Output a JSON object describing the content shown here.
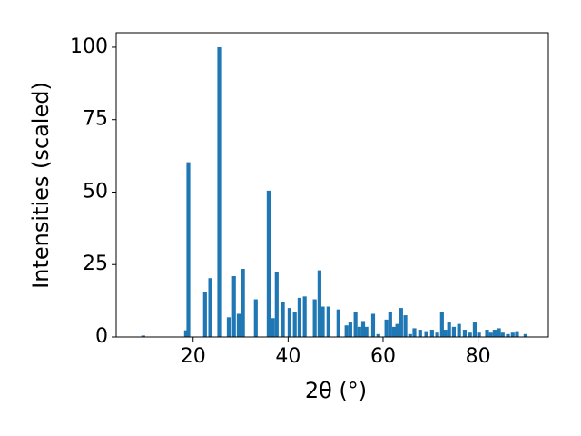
{
  "chart_data": {
    "type": "bar",
    "xlabel": "2θ (°)",
    "ylabel": "Intensities (scaled)",
    "color": "#1f77b4",
    "bar_width": 0.8,
    "x": [
      9.5,
      18.5,
      19.0,
      22.5,
      23.6,
      25.5,
      27.5,
      28.6,
      29.6,
      30.5,
      33.2,
      35.9,
      36.8,
      37.6,
      38.9,
      40.3,
      41.4,
      42.4,
      43.5,
      45.6,
      46.6,
      47.3,
      48.5,
      50.6,
      52.3,
      53.1,
      54.2,
      55.0,
      55.8,
      56.5,
      57.9,
      59.0,
      60.7,
      61.5,
      62.3,
      63.0,
      63.8,
      64.7,
      65.7,
      66.6,
      67.8,
      69.1,
      70.3,
      71.4,
      72.4,
      73.1,
      73.9,
      74.9,
      76.0,
      77.2,
      78.3,
      79.3,
      80.2,
      81.9,
      82.7,
      83.5,
      84.4,
      85.2,
      86.3,
      87.3,
      88.2,
      90.0
    ],
    "values": [
      0.5,
      2.3,
      60.3,
      15.5,
      20.3,
      100,
      6.8,
      21,
      8,
      23.5,
      13,
      50.5,
      6.5,
      22.5,
      12,
      10,
      8.5,
      13.5,
      14,
      13,
      23,
      10.5,
      10.5,
      9.5,
      4,
      5,
      8.5,
      3.5,
      5.5,
      3.5,
      8,
      1,
      6,
      8.5,
      3.5,
      4.5,
      10,
      7.5,
      1,
      3,
      2.5,
      2,
      2.5,
      1.5,
      8.5,
      2.5,
      5,
      3.5,
      4.5,
      2.5,
      1.5,
      5,
      1.5,
      2.5,
      1.5,
      2.5,
      3,
      1.5,
      1,
      1.5,
      2,
      1
    ],
    "xlim": [
      3.8,
      94.8
    ],
    "ylim": [
      0,
      105
    ],
    "xticks": [
      20,
      40,
      60,
      80
    ],
    "yticks": [
      0,
      25,
      50,
      75,
      100
    ]
  }
}
